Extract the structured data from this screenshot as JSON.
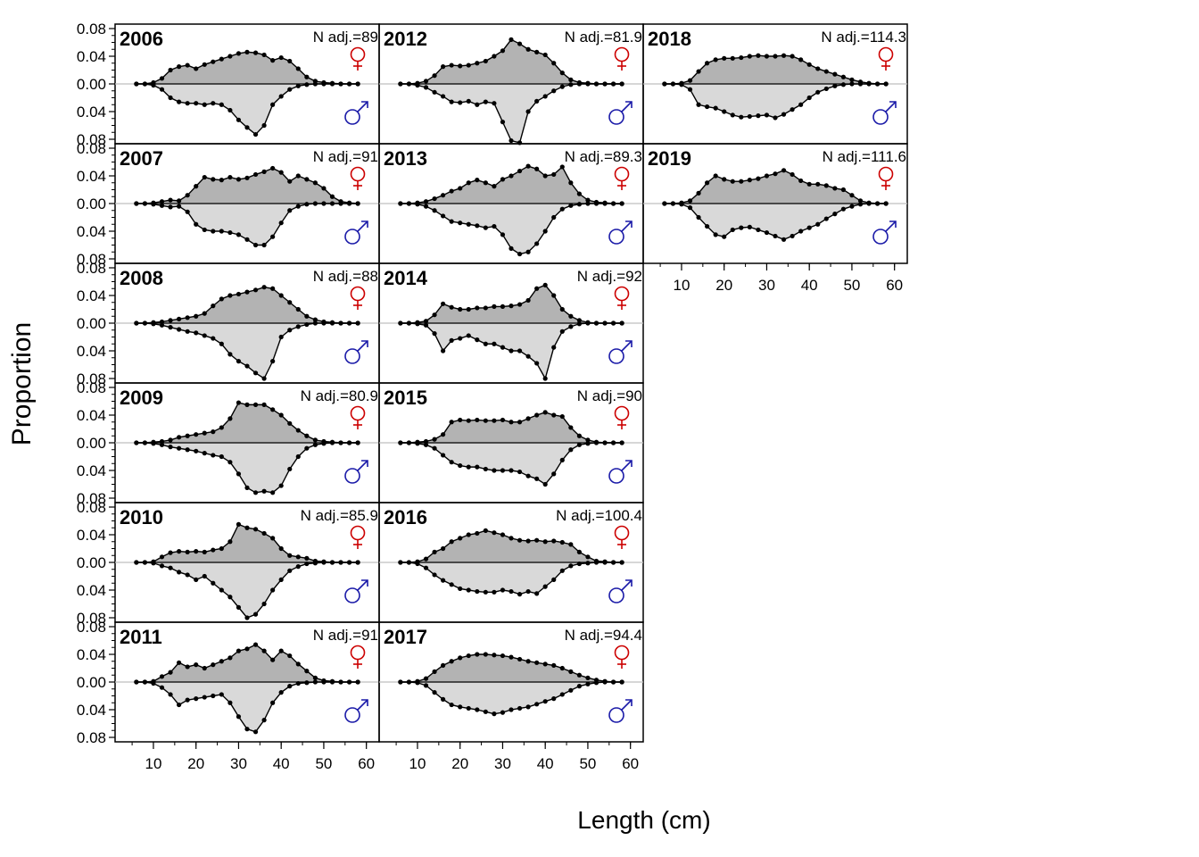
{
  "figure": {
    "ylabel": "Proportion",
    "xlabel": "Length (cm)"
  },
  "colors": {
    "female_fill": "#b3b3b3",
    "male_fill": "#d9d9d9",
    "line": "#000000",
    "female_symbol": "#cc0000",
    "male_symbol": "#1a1aa8",
    "zero_line": "#bfbfbf"
  },
  "chart_data": {
    "type": "area",
    "description_of_axes": "mirrored",
    "x": [
      6,
      8,
      10,
      12,
      14,
      16,
      18,
      20,
      22,
      24,
      26,
      28,
      30,
      32,
      34,
      36,
      38,
      40,
      42,
      44,
      46,
      48,
      50,
      52,
      54,
      56,
      58
    ],
    "x_ticks": [
      10,
      20,
      30,
      40,
      50,
      60
    ],
    "y_tick_labels": [
      "0.08",
      "0.04",
      "0.00",
      "0.04",
      "0.08"
    ],
    "ylim": [
      -0.08,
      0.08
    ],
    "xlim": [
      1,
      63
    ],
    "panels": [
      {
        "year": "2006",
        "n_label": "N adj.=89",
        "female": [
          0,
          0,
          0.002,
          0.008,
          0.02,
          0.025,
          0.027,
          0.022,
          0.028,
          0.032,
          0.036,
          0.04,
          0.044,
          0.046,
          0.045,
          0.042,
          0.034,
          0.038,
          0.033,
          0.022,
          0.01,
          0.004,
          0.002,
          0.001,
          0,
          0,
          0
        ],
        "male": [
          0,
          0,
          0.002,
          0.008,
          0.02,
          0.026,
          0.028,
          0.028,
          0.03,
          0.028,
          0.03,
          0.038,
          0.052,
          0.063,
          0.073,
          0.06,
          0.03,
          0.018,
          0.008,
          0.003,
          0.001,
          0,
          0,
          0,
          0,
          0,
          0
        ]
      },
      {
        "year": "2012",
        "n_label": "N adj.=81.9",
        "female": [
          0,
          0,
          0.001,
          0.004,
          0.012,
          0.025,
          0.027,
          0.026,
          0.027,
          0.03,
          0.033,
          0.04,
          0.048,
          0.064,
          0.058,
          0.05,
          0.046,
          0.042,
          0.03,
          0.016,
          0.006,
          0.002,
          0.001,
          0,
          0,
          0,
          0
        ],
        "male": [
          0,
          0,
          0.002,
          0.005,
          0.012,
          0.018,
          0.026,
          0.027,
          0.025,
          0.03,
          0.026,
          0.028,
          0.055,
          0.082,
          0.085,
          0.04,
          0.025,
          0.018,
          0.01,
          0.004,
          0.001,
          0,
          0,
          0,
          0,
          0,
          0
        ]
      },
      {
        "year": "2018",
        "n_label": "N adj.=114.3",
        "female": [
          0,
          0,
          0.001,
          0.005,
          0.018,
          0.03,
          0.035,
          0.037,
          0.037,
          0.038,
          0.04,
          0.041,
          0.04,
          0.04,
          0.041,
          0.04,
          0.035,
          0.028,
          0.022,
          0.018,
          0.014,
          0.01,
          0.006,
          0.003,
          0.001,
          0,
          0
        ],
        "male": [
          0,
          0,
          0.001,
          0.008,
          0.03,
          0.033,
          0.035,
          0.04,
          0.045,
          0.048,
          0.047,
          0.046,
          0.045,
          0.049,
          0.044,
          0.037,
          0.03,
          0.02,
          0.012,
          0.007,
          0.003,
          0.001,
          0,
          0,
          0,
          0,
          0
        ]
      },
      {
        "year": "2007",
        "n_label": "N adj.=91",
        "female": [
          0,
          0,
          0.001,
          0.003,
          0.005,
          0.004,
          0.012,
          0.025,
          0.038,
          0.035,
          0.034,
          0.038,
          0.035,
          0.037,
          0.042,
          0.046,
          0.051,
          0.045,
          0.032,
          0.04,
          0.035,
          0.03,
          0.022,
          0.01,
          0.003,
          0.001,
          0
        ],
        "male": [
          0,
          0,
          0.001,
          0.003,
          0.005,
          0.004,
          0.012,
          0.03,
          0.038,
          0.04,
          0.04,
          0.042,
          0.045,
          0.052,
          0.06,
          0.06,
          0.048,
          0.028,
          0.01,
          0.004,
          0.001,
          0,
          0,
          0,
          0,
          0,
          0
        ]
      },
      {
        "year": "2013",
        "n_label": "N adj.=89.3",
        "female": [
          0,
          0,
          0.001,
          0.003,
          0.007,
          0.012,
          0.018,
          0.022,
          0.03,
          0.034,
          0.03,
          0.025,
          0.035,
          0.04,
          0.047,
          0.054,
          0.05,
          0.04,
          0.042,
          0.053,
          0.03,
          0.014,
          0.005,
          0.002,
          0.001,
          0,
          0
        ],
        "male": [
          0,
          0,
          0.001,
          0.004,
          0.01,
          0.018,
          0.026,
          0.028,
          0.03,
          0.032,
          0.035,
          0.033,
          0.045,
          0.065,
          0.073,
          0.07,
          0.058,
          0.04,
          0.02,
          0.008,
          0.003,
          0.001,
          0,
          0,
          0,
          0,
          0
        ]
      },
      {
        "year": "2019",
        "n_label": "N adj.=111.6",
        "female": [
          0,
          0,
          0.001,
          0.004,
          0.015,
          0.03,
          0.04,
          0.035,
          0.032,
          0.032,
          0.034,
          0.036,
          0.04,
          0.043,
          0.048,
          0.042,
          0.033,
          0.028,
          0.028,
          0.026,
          0.022,
          0.02,
          0.012,
          0.004,
          0.001,
          0,
          0
        ],
        "male": [
          0,
          0,
          0.001,
          0.006,
          0.02,
          0.033,
          0.045,
          0.048,
          0.038,
          0.035,
          0.034,
          0.038,
          0.042,
          0.047,
          0.052,
          0.047,
          0.04,
          0.035,
          0.03,
          0.022,
          0.015,
          0.008,
          0.004,
          0.001,
          0,
          0,
          0
        ]
      },
      {
        "year": "2008",
        "n_label": "N adj.=88",
        "female": [
          0,
          0,
          0.001,
          0.002,
          0.004,
          0.006,
          0.008,
          0.01,
          0.014,
          0.025,
          0.035,
          0.04,
          0.042,
          0.045,
          0.048,
          0.052,
          0.05,
          0.04,
          0.03,
          0.02,
          0.01,
          0.005,
          0.002,
          0.001,
          0,
          0,
          0
        ],
        "male": [
          0,
          0,
          0.001,
          0.003,
          0.006,
          0.009,
          0.012,
          0.014,
          0.018,
          0.022,
          0.03,
          0.045,
          0.055,
          0.062,
          0.072,
          0.08,
          0.055,
          0.02,
          0.01,
          0.005,
          0.002,
          0,
          0,
          0,
          0,
          0,
          0
        ]
      },
      {
        "year": "2014",
        "n_label": "N adj.=92",
        "female": [
          0,
          0,
          0.001,
          0.003,
          0.012,
          0.028,
          0.023,
          0.02,
          0.02,
          0.022,
          0.022,
          0.024,
          0.024,
          0.025,
          0.027,
          0.033,
          0.05,
          0.055,
          0.04,
          0.02,
          0.01,
          0.004,
          0.001,
          0,
          0,
          0,
          0
        ],
        "male": [
          0,
          0,
          0.001,
          0.003,
          0.015,
          0.04,
          0.025,
          0.022,
          0.018,
          0.024,
          0.03,
          0.03,
          0.035,
          0.04,
          0.04,
          0.048,
          0.058,
          0.08,
          0.035,
          0.012,
          0.005,
          0.001,
          0,
          0,
          0,
          0,
          0
        ]
      },
      {
        "year": "2009",
        "n_label": "N adj.=80.9",
        "female": [
          0,
          0,
          0.001,
          0.002,
          0.004,
          0.008,
          0.01,
          0.012,
          0.014,
          0.016,
          0.022,
          0.035,
          0.058,
          0.055,
          0.055,
          0.055,
          0.048,
          0.04,
          0.028,
          0.018,
          0.01,
          0.004,
          0.002,
          0.001,
          0,
          0,
          0
        ],
        "male": [
          0,
          0,
          0.001,
          0.003,
          0.006,
          0.008,
          0.01,
          0.012,
          0.015,
          0.018,
          0.02,
          0.028,
          0.045,
          0.065,
          0.072,
          0.07,
          0.072,
          0.062,
          0.038,
          0.02,
          0.008,
          0.003,
          0.001,
          0,
          0,
          0,
          0
        ]
      },
      {
        "year": "2015",
        "n_label": "N adj.=90",
        "female": [
          0,
          0,
          0.001,
          0.002,
          0.005,
          0.012,
          0.03,
          0.033,
          0.032,
          0.033,
          0.032,
          0.032,
          0.033,
          0.03,
          0.03,
          0.035,
          0.04,
          0.044,
          0.04,
          0.038,
          0.022,
          0.01,
          0.004,
          0.001,
          0,
          0,
          0
        ],
        "male": [
          0,
          0,
          0.001,
          0.003,
          0.008,
          0.018,
          0.028,
          0.033,
          0.035,
          0.035,
          0.038,
          0.04,
          0.04,
          0.04,
          0.042,
          0.048,
          0.052,
          0.06,
          0.045,
          0.025,
          0.01,
          0.003,
          0.001,
          0,
          0,
          0,
          0
        ]
      },
      {
        "year": "2010",
        "n_label": "N adj.=85.9",
        "female": [
          0,
          0,
          0.001,
          0.008,
          0.014,
          0.016,
          0.015,
          0.016,
          0.015,
          0.018,
          0.02,
          0.03,
          0.055,
          0.05,
          0.048,
          0.042,
          0.035,
          0.02,
          0.01,
          0.008,
          0.006,
          0.002,
          0.001,
          0,
          0,
          0,
          0
        ],
        "male": [
          0,
          0,
          0.001,
          0.005,
          0.008,
          0.014,
          0.018,
          0.025,
          0.02,
          0.03,
          0.04,
          0.05,
          0.065,
          0.08,
          0.075,
          0.06,
          0.04,
          0.025,
          0.012,
          0.006,
          0.002,
          0.001,
          0,
          0,
          0,
          0,
          0
        ]
      },
      {
        "year": "2016",
        "n_label": "N adj.=100.4",
        "female": [
          0,
          0,
          0.001,
          0.005,
          0.015,
          0.02,
          0.03,
          0.035,
          0.04,
          0.042,
          0.046,
          0.043,
          0.04,
          0.035,
          0.032,
          0.031,
          0.032,
          0.03,
          0.031,
          0.029,
          0.026,
          0.015,
          0.008,
          0.002,
          0.001,
          0,
          0
        ],
        "male": [
          0,
          0,
          0.002,
          0.008,
          0.018,
          0.026,
          0.032,
          0.038,
          0.04,
          0.042,
          0.043,
          0.043,
          0.04,
          0.042,
          0.046,
          0.042,
          0.045,
          0.035,
          0.025,
          0.012,
          0.005,
          0.002,
          0.001,
          0,
          0,
          0,
          0
        ]
      },
      {
        "year": "2011",
        "n_label": "N adj.=91",
        "female": [
          0,
          0,
          0.001,
          0.008,
          0.014,
          0.028,
          0.022,
          0.025,
          0.02,
          0.025,
          0.03,
          0.035,
          0.045,
          0.048,
          0.054,
          0.045,
          0.032,
          0.045,
          0.038,
          0.026,
          0.016,
          0.006,
          0.002,
          0.001,
          0,
          0,
          0
        ],
        "male": [
          0,
          0,
          0.002,
          0.008,
          0.018,
          0.033,
          0.026,
          0.024,
          0.022,
          0.02,
          0.018,
          0.03,
          0.05,
          0.068,
          0.072,
          0.055,
          0.03,
          0.015,
          0.006,
          0.002,
          0.001,
          0,
          0,
          0,
          0,
          0,
          0
        ]
      },
      {
        "year": "2017",
        "n_label": "N adj.=94.4",
        "female": [
          0,
          0,
          0.001,
          0.005,
          0.015,
          0.024,
          0.03,
          0.035,
          0.038,
          0.04,
          0.04,
          0.039,
          0.038,
          0.036,
          0.033,
          0.03,
          0.028,
          0.026,
          0.024,
          0.02,
          0.015,
          0.01,
          0.006,
          0.003,
          0.001,
          0,
          0
        ],
        "male": [
          0,
          0,
          0.001,
          0.005,
          0.015,
          0.025,
          0.033,
          0.036,
          0.038,
          0.04,
          0.043,
          0.046,
          0.044,
          0.04,
          0.038,
          0.036,
          0.032,
          0.028,
          0.024,
          0.018,
          0.012,
          0.006,
          0.003,
          0.001,
          0,
          0,
          0
        ]
      }
    ]
  }
}
